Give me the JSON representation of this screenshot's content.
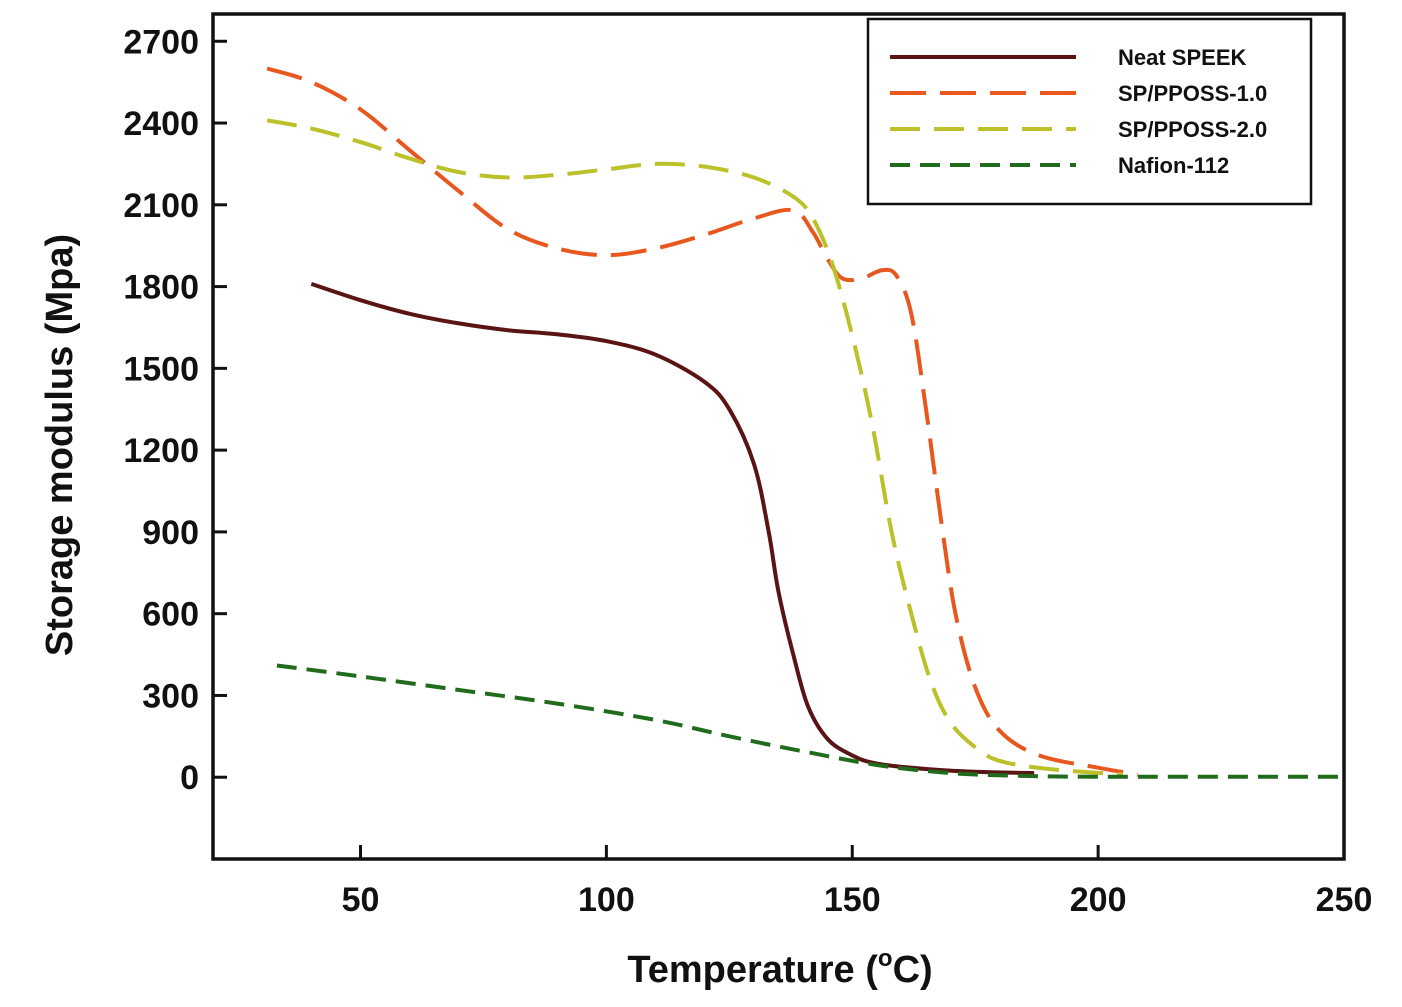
{
  "chart_data": {
    "type": "line",
    "xlabel": "Temperature (",
    "xlabel_sup": "o",
    "xlabel_end": "C)",
    "ylabel": "Storage modulus (Mpa)",
    "xlim": [
      20,
      250
    ],
    "ylim": [
      -300,
      2800
    ],
    "x_ticks": [
      50,
      100,
      150,
      200,
      250
    ],
    "x_tick_labels": [
      "50",
      "100",
      "150",
      "200",
      "250"
    ],
    "y_ticks": [
      0,
      300,
      600,
      900,
      1200,
      1500,
      1800,
      2100,
      2400,
      2700
    ],
    "y_tick_labels": [
      "0",
      "300",
      "600",
      "900",
      "1200",
      "1500",
      "1800",
      "2100",
      "2400",
      "2700"
    ],
    "grid": false,
    "legend_position": "top-right",
    "series": [
      {
        "name": "Neat SPEEK",
        "color": "#5a1414",
        "dash": "solid",
        "points": [
          [
            40,
            1810
          ],
          [
            50,
            1750
          ],
          [
            60,
            1700
          ],
          [
            70,
            1665
          ],
          [
            80,
            1640
          ],
          [
            90,
            1625
          ],
          [
            100,
            1600
          ],
          [
            110,
            1550
          ],
          [
            120,
            1450
          ],
          [
            125,
            1350
          ],
          [
            130,
            1150
          ],
          [
            133,
            900
          ],
          [
            135,
            680
          ],
          [
            138,
            450
          ],
          [
            141,
            260
          ],
          [
            145,
            140
          ],
          [
            150,
            80
          ],
          [
            155,
            50
          ],
          [
            165,
            30
          ],
          [
            175,
            20
          ],
          [
            187,
            15
          ]
        ]
      },
      {
        "name": "SP/PPOSS-1.0",
        "color": "#e8581e",
        "dash": "long",
        "points": [
          [
            31,
            2600
          ],
          [
            40,
            2550
          ],
          [
            50,
            2450
          ],
          [
            60,
            2300
          ],
          [
            70,
            2150
          ],
          [
            80,
            2010
          ],
          [
            90,
            1940
          ],
          [
            100,
            1915
          ],
          [
            110,
            1940
          ],
          [
            120,
            1990
          ],
          [
            130,
            2050
          ],
          [
            138,
            2080
          ],
          [
            142,
            2000
          ],
          [
            145,
            1900
          ],
          [
            148,
            1830
          ],
          [
            152,
            1830
          ],
          [
            156,
            1860
          ],
          [
            159,
            1840
          ],
          [
            162,
            1700
          ],
          [
            165,
            1350
          ],
          [
            168,
            950
          ],
          [
            171,
            600
          ],
          [
            175,
            330
          ],
          [
            180,
            170
          ],
          [
            188,
            80
          ],
          [
            200,
            35
          ],
          [
            208,
            10
          ]
        ]
      },
      {
        "name": "SP/PPOSS-2.0",
        "color": "#bcc12a",
        "dash": "medium",
        "points": [
          [
            31,
            2410
          ],
          [
            40,
            2380
          ],
          [
            50,
            2330
          ],
          [
            60,
            2270
          ],
          [
            70,
            2220
          ],
          [
            80,
            2200
          ],
          [
            90,
            2210
          ],
          [
            100,
            2230
          ],
          [
            110,
            2250
          ],
          [
            120,
            2240
          ],
          [
            130,
            2200
          ],
          [
            138,
            2130
          ],
          [
            142,
            2050
          ],
          [
            146,
            1880
          ],
          [
            150,
            1620
          ],
          [
            154,
            1300
          ],
          [
            158,
            900
          ],
          [
            162,
            600
          ],
          [
            166,
            350
          ],
          [
            170,
            200
          ],
          [
            175,
            110
          ],
          [
            180,
            60
          ],
          [
            190,
            30
          ],
          [
            205,
            10
          ]
        ]
      },
      {
        "name": "Nafion-112",
        "color": "#216b1d",
        "dash": "short",
        "points": [
          [
            33,
            410
          ],
          [
            50,
            370
          ],
          [
            70,
            320
          ],
          [
            90,
            270
          ],
          [
            110,
            210
          ],
          [
            125,
            150
          ],
          [
            140,
            95
          ],
          [
            155,
            45
          ],
          [
            170,
            15
          ],
          [
            185,
            5
          ],
          [
            200,
            2
          ],
          [
            250,
            2
          ]
        ]
      }
    ]
  }
}
